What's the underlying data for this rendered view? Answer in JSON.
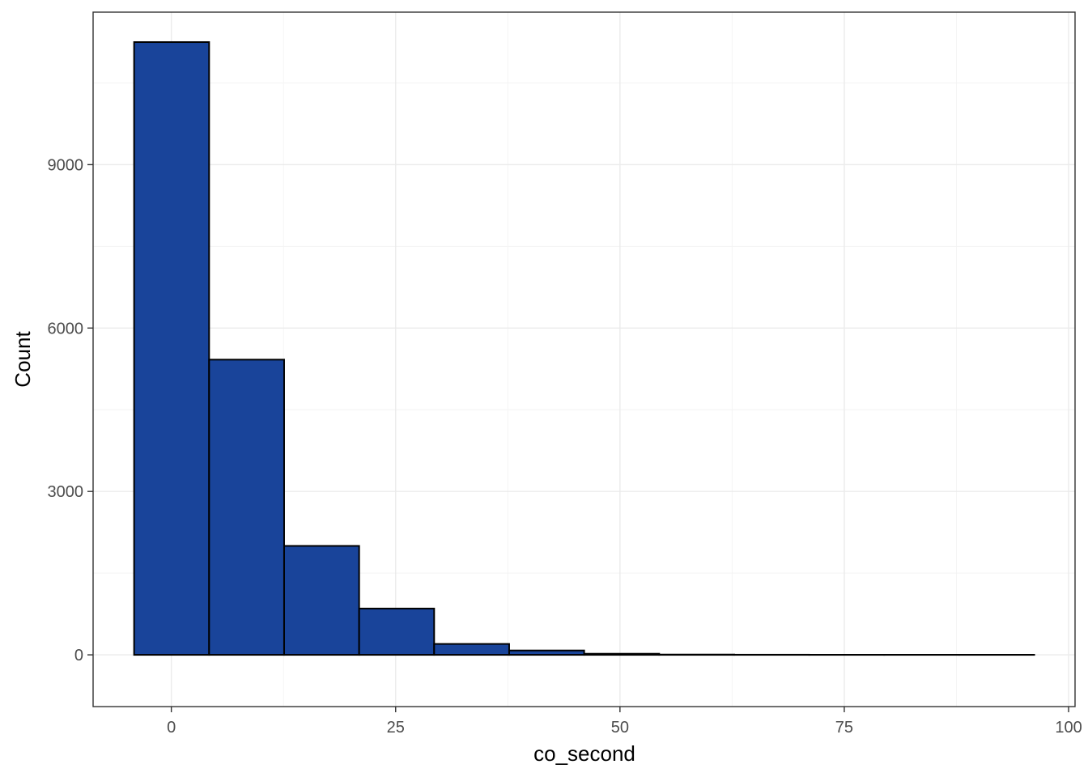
{
  "chart_data": {
    "type": "bar",
    "xlabel": "co_second",
    "ylabel": "Count",
    "xlim": [
      -8.72,
      100.72
    ],
    "ylim": [
      -950,
      11800
    ],
    "x_ticks": [
      0,
      25,
      50,
      75,
      100
    ],
    "x_tick_labels": [
      "0",
      "25",
      "50",
      "75",
      "100"
    ],
    "y_ticks": [
      0,
      3000,
      6000,
      9000
    ],
    "y_tick_labels": [
      "0",
      "3000",
      "6000",
      "9000"
    ],
    "grid": true,
    "bins": [
      {
        "x0": -4.15,
        "x1": 4.21,
        "count": 11250
      },
      {
        "x0": 4.21,
        "x1": 12.57,
        "count": 5420
      },
      {
        "x0": 12.57,
        "x1": 20.93,
        "count": 2000
      },
      {
        "x0": 20.93,
        "x1": 29.29,
        "count": 850
      },
      {
        "x0": 29.29,
        "x1": 37.65,
        "count": 200
      },
      {
        "x0": 37.65,
        "x1": 46.01,
        "count": 80
      },
      {
        "x0": 46.01,
        "x1": 54.37,
        "count": 20
      },
      {
        "x0": 54.37,
        "x1": 62.73,
        "count": 5
      },
      {
        "x0": 62.73,
        "x1": 71.09,
        "count": 2
      },
      {
        "x0": 71.09,
        "x1": 79.45,
        "count": 1
      },
      {
        "x0": 79.45,
        "x1": 87.81,
        "count": 1
      },
      {
        "x0": 87.81,
        "x1": 96.17,
        "count": 1
      }
    ],
    "colors": {
      "bar_fill": "#19449A",
      "bar_outline": "#000000"
    }
  }
}
